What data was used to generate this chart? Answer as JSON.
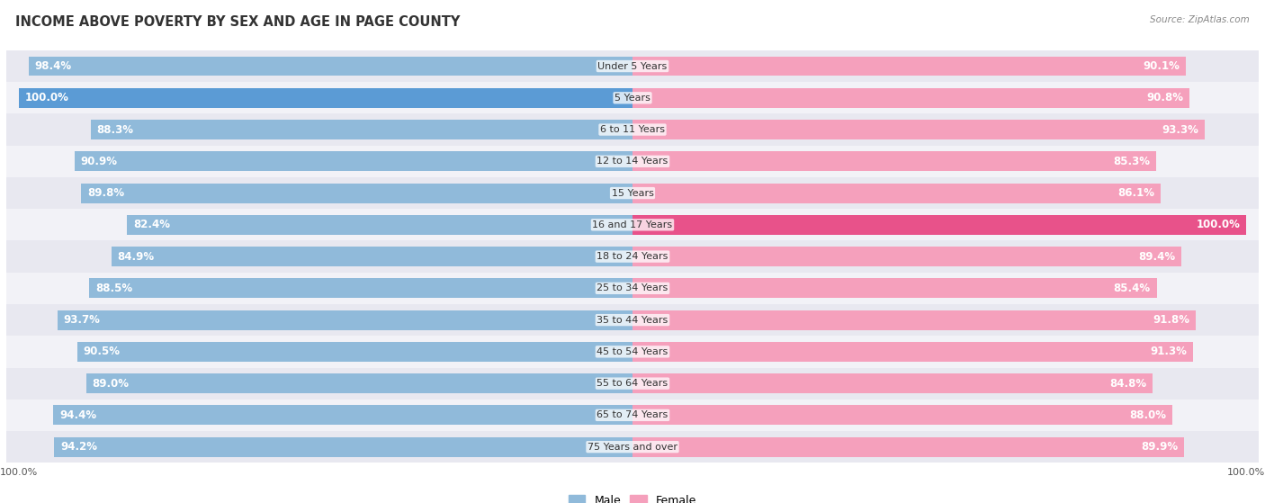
{
  "title": "INCOME ABOVE POVERTY BY SEX AND AGE IN PAGE COUNTY",
  "source": "Source: ZipAtlas.com",
  "categories": [
    "Under 5 Years",
    "5 Years",
    "6 to 11 Years",
    "12 to 14 Years",
    "15 Years",
    "16 and 17 Years",
    "18 to 24 Years",
    "25 to 34 Years",
    "35 to 44 Years",
    "45 to 54 Years",
    "55 to 64 Years",
    "65 to 74 Years",
    "75 Years and over"
  ],
  "male_values": [
    98.4,
    100.0,
    88.3,
    90.9,
    89.8,
    82.4,
    84.9,
    88.5,
    93.7,
    90.5,
    89.0,
    94.4,
    94.2
  ],
  "female_values": [
    90.1,
    90.8,
    93.3,
    85.3,
    86.1,
    100.0,
    89.4,
    85.4,
    91.8,
    91.3,
    84.8,
    88.0,
    89.9
  ],
  "male_color": "#90bada",
  "female_color": "#f5a0bc",
  "female_full_color": "#e8528a",
  "male_full_color": "#5b9bd5",
  "row_colors": [
    "#e8e8f0",
    "#f2f2f7"
  ],
  "bar_height": 0.62,
  "title_fontsize": 10.5,
  "value_fontsize": 8.5,
  "cat_fontsize": 8,
  "source_fontsize": 7.5,
  "legend_fontsize": 9
}
